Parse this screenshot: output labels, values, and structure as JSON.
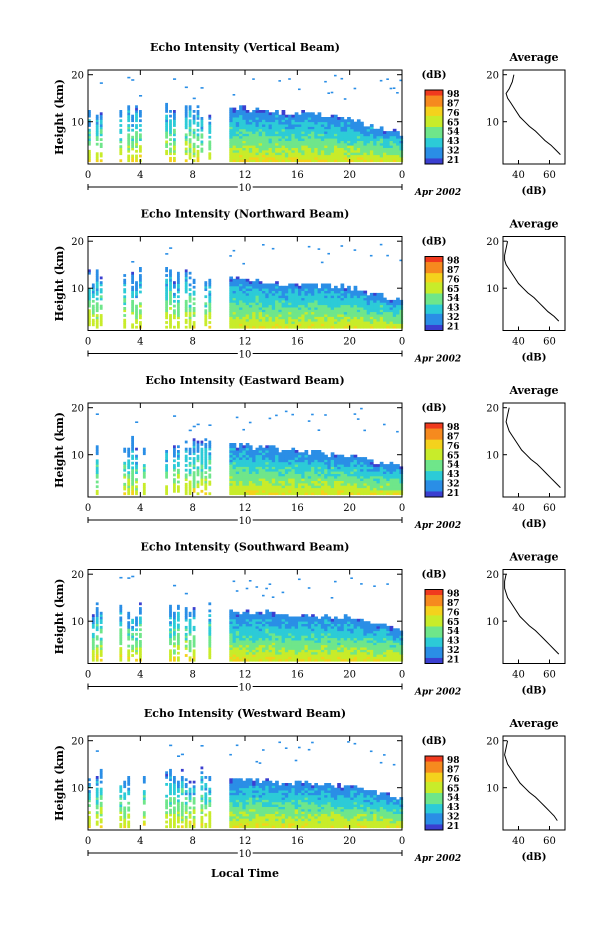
{
  "figure": {
    "xlabel": "Local Time",
    "date_label": "Apr 2002",
    "day_label": "10"
  },
  "colorbar": {
    "unit": "(dB)",
    "ticks": [
      "98",
      "87",
      "76",
      "65",
      "54",
      "43",
      "32",
      "21"
    ],
    "colors": [
      "#f03a1e",
      "#f68a1f",
      "#f4d21d",
      "#c8ec2a",
      "#6fe68a",
      "#2ccbd7",
      "#2a8ee6",
      "#3b3fd0"
    ]
  },
  "panels": [
    {
      "title": "Echo Intensity (Vertical Beam)",
      "avg_xticks": [
        "40",
        "60"
      ],
      "cb_ticks": [
        "98",
        "87",
        "76",
        "65",
        "54",
        "43",
        "32",
        "21"
      ]
    },
    {
      "title": "Echo Intensity (Northward Beam)",
      "avg_xticks": [
        "40",
        "60"
      ],
      "cb_ticks": [
        "98",
        "87",
        "76",
        "65",
        "54",
        "43",
        "32",
        "21"
      ]
    },
    {
      "title": "Echo Intensity (Eastward Beam)",
      "avg_xticks": [
        "40",
        "60"
      ],
      "cb_ticks": [
        "98",
        "87",
        "76",
        "65",
        "54",
        "43",
        "32",
        "21"
      ]
    },
    {
      "title": "Echo Intensity (Southward Beam)",
      "avg_xticks": [
        "40",
        "60"
      ],
      "cb_ticks": [
        "98",
        "87",
        "76",
        "65",
        "54",
        "43",
        "32",
        "21"
      ]
    },
    {
      "title": "Echo Intensity (Westward Beam)",
      "avg_xticks": [
        "40",
        "60"
      ],
      "cb_ticks": [
        "98",
        "87",
        "76",
        "65",
        "54",
        "43",
        "32",
        "21"
      ]
    }
  ],
  "chart_data": [
    {
      "type": "heatmap",
      "title": "Echo Intensity (Vertical Beam)",
      "xlabel": "",
      "ylabel": "Height (km)",
      "x_ticks": [
        "0",
        "4",
        "8",
        "12",
        "16",
        "20",
        "0"
      ],
      "y_ticks": [
        "10",
        "20"
      ],
      "xlim": [
        0,
        24
      ],
      "ylim": [
        1,
        21
      ],
      "data_segments_hours": [
        [
          0,
          1
        ],
        [
          2.4,
          4.3
        ],
        [
          5.9,
          9.3
        ],
        [
          10.8,
          24
        ]
      ],
      "echo_top_km": [
        [
          11,
          13
        ],
        [
          14,
          12
        ],
        [
          17,
          11.5
        ],
        [
          20,
          10
        ],
        [
          24,
          7
        ]
      ]
    },
    {
      "type": "line",
      "title": "Average",
      "xlabel": "(dB)",
      "ylabel": "",
      "x_ticks": [
        "40",
        "60"
      ],
      "y_ticks": [
        "10",
        "20"
      ],
      "xlim": [
        30,
        70
      ],
      "ylim": [
        1,
        21
      ],
      "series": [
        {
          "x": [
            37,
            36,
            34,
            32,
            33,
            35,
            38,
            41,
            44,
            47,
            51,
            54,
            57,
            61,
            64,
            67
          ],
          "y": [
            20,
            18.5,
            17,
            16,
            15,
            14,
            12.5,
            11,
            10,
            9,
            8,
            7,
            6,
            5,
            4,
            3
          ]
        }
      ]
    },
    {
      "type": "heatmap",
      "title": "Echo Intensity (Northward Beam)",
      "xlabel": "",
      "ylabel": "Height (km)",
      "x_ticks": [
        "0",
        "4",
        "8",
        "12",
        "16",
        "20",
        "0"
      ],
      "y_ticks": [
        "10",
        "20"
      ],
      "xlim": [
        0,
        24
      ],
      "ylim": [
        1,
        21
      ],
      "data_segments_hours": [
        [
          0,
          1
        ],
        [
          2.4,
          4.3
        ],
        [
          5.9,
          9.3
        ],
        [
          10.8,
          24
        ]
      ],
      "echo_top_km": [
        [
          11,
          12
        ],
        [
          14,
          11
        ],
        [
          17,
          10.5
        ],
        [
          20,
          10
        ],
        [
          24,
          7
        ]
      ]
    },
    {
      "type": "line",
      "title": "Average",
      "xlabel": "(dB)",
      "ylabel": "",
      "x_ticks": [
        "40",
        "60"
      ],
      "y_ticks": [
        "10",
        "20"
      ],
      "xlim": [
        30,
        70
      ],
      "ylim": [
        1,
        21
      ],
      "series": [
        {
          "x": [
            33,
            32,
            31,
            31,
            32,
            34,
            37,
            40,
            43,
            46,
            50,
            53,
            56,
            59,
            63,
            66
          ],
          "y": [
            20,
            18.5,
            17,
            16,
            15,
            14,
            12.5,
            11,
            10,
            9,
            8,
            7,
            6,
            5,
            4,
            3
          ]
        }
      ]
    },
    {
      "type": "heatmap",
      "title": "Echo Intensity (Eastward Beam)",
      "xlabel": "",
      "ylabel": "Height (km)",
      "x_ticks": [
        "0",
        "4",
        "8",
        "12",
        "16",
        "20",
        "0"
      ],
      "y_ticks": [
        "10",
        "20"
      ],
      "xlim": [
        0,
        24
      ],
      "ylim": [
        1,
        21
      ],
      "data_segments_hours": [
        [
          0,
          1
        ],
        [
          2.4,
          4.3
        ],
        [
          5.9,
          9.3
        ],
        [
          10.8,
          24
        ]
      ],
      "echo_top_km": [
        [
          11,
          12
        ],
        [
          14,
          11
        ],
        [
          17,
          10.5
        ],
        [
          20,
          9.5
        ],
        [
          24,
          7
        ]
      ]
    },
    {
      "type": "line",
      "title": "Average",
      "xlabel": "(dB)",
      "ylabel": "",
      "x_ticks": [
        "40",
        "60"
      ],
      "y_ticks": [
        "10",
        "20"
      ],
      "xlim": [
        30,
        70
      ],
      "ylim": [
        1,
        21
      ],
      "series": [
        {
          "x": [
            34,
            33,
            32,
            33,
            34,
            36,
            39,
            42,
            45,
            48,
            52,
            55,
            58,
            61,
            64,
            67
          ],
          "y": [
            20,
            18.5,
            17,
            16,
            15,
            14,
            12.5,
            11,
            10,
            9,
            8,
            7,
            6,
            5,
            4,
            3
          ]
        }
      ]
    },
    {
      "type": "heatmap",
      "title": "Echo Intensity (Southward Beam)",
      "xlabel": "",
      "ylabel": "Height (km)",
      "x_ticks": [
        "0",
        "4",
        "8",
        "12",
        "16",
        "20",
        "0"
      ],
      "y_ticks": [
        "10",
        "20"
      ],
      "xlim": [
        0,
        24
      ],
      "ylim": [
        1,
        21
      ],
      "data_segments_hours": [
        [
          0,
          1
        ],
        [
          2.4,
          4.3
        ],
        [
          5.9,
          9.3
        ],
        [
          10.8,
          24
        ]
      ],
      "echo_top_km": [
        [
          11,
          12
        ],
        [
          14,
          11.5
        ],
        [
          17,
          11
        ],
        [
          20,
          10.5
        ],
        [
          24,
          8
        ]
      ]
    },
    {
      "type": "line",
      "title": "Average",
      "xlabel": "(dB)",
      "ylabel": "",
      "x_ticks": [
        "40",
        "60"
      ],
      "y_ticks": [
        "10",
        "20"
      ],
      "xlim": [
        30,
        70
      ],
      "ylim": [
        1,
        21
      ],
      "series": [
        {
          "x": [
            32,
            31,
            31,
            32,
            33,
            35,
            38,
            41,
            44,
            47,
            51,
            54,
            57,
            60,
            63,
            66
          ],
          "y": [
            20,
            18.5,
            17,
            16,
            15,
            14,
            12.5,
            11,
            10,
            9,
            8,
            7,
            6,
            5,
            4,
            3
          ]
        }
      ]
    },
    {
      "type": "heatmap",
      "title": "Echo Intensity (Westward Beam)",
      "xlabel": "Local Time",
      "ylabel": "Height (km)",
      "x_ticks": [
        "0",
        "4",
        "8",
        "12",
        "16",
        "20",
        "0"
      ],
      "y_ticks": [
        "10",
        "20"
      ],
      "xlim": [
        0,
        24
      ],
      "ylim": [
        1,
        21
      ],
      "data_segments_hours": [
        [
          0,
          1
        ],
        [
          2.4,
          4.3
        ],
        [
          5.9,
          9.3
        ],
        [
          10.8,
          24
        ]
      ],
      "echo_top_km": [
        [
          11,
          12
        ],
        [
          14,
          11
        ],
        [
          17,
          10.5
        ],
        [
          20,
          10
        ],
        [
          24,
          7.5
        ]
      ]
    },
    {
      "type": "line",
      "title": "Average",
      "xlabel": "(dB)",
      "ylabel": "",
      "x_ticks": [
        "40",
        "60"
      ],
      "y_ticks": [
        "10",
        "20"
      ],
      "xlim": [
        30,
        70
      ],
      "ylim": [
        1,
        21
      ],
      "series": [
        {
          "x": [
            33,
            32,
            31,
            32,
            33,
            35,
            38,
            41,
            44,
            47,
            51,
            54,
            57,
            60,
            63,
            65
          ],
          "y": [
            20,
            18.5,
            17,
            16,
            15,
            14,
            12.5,
            11,
            10,
            9,
            8,
            7,
            6,
            5,
            4,
            3
          ]
        }
      ]
    }
  ]
}
